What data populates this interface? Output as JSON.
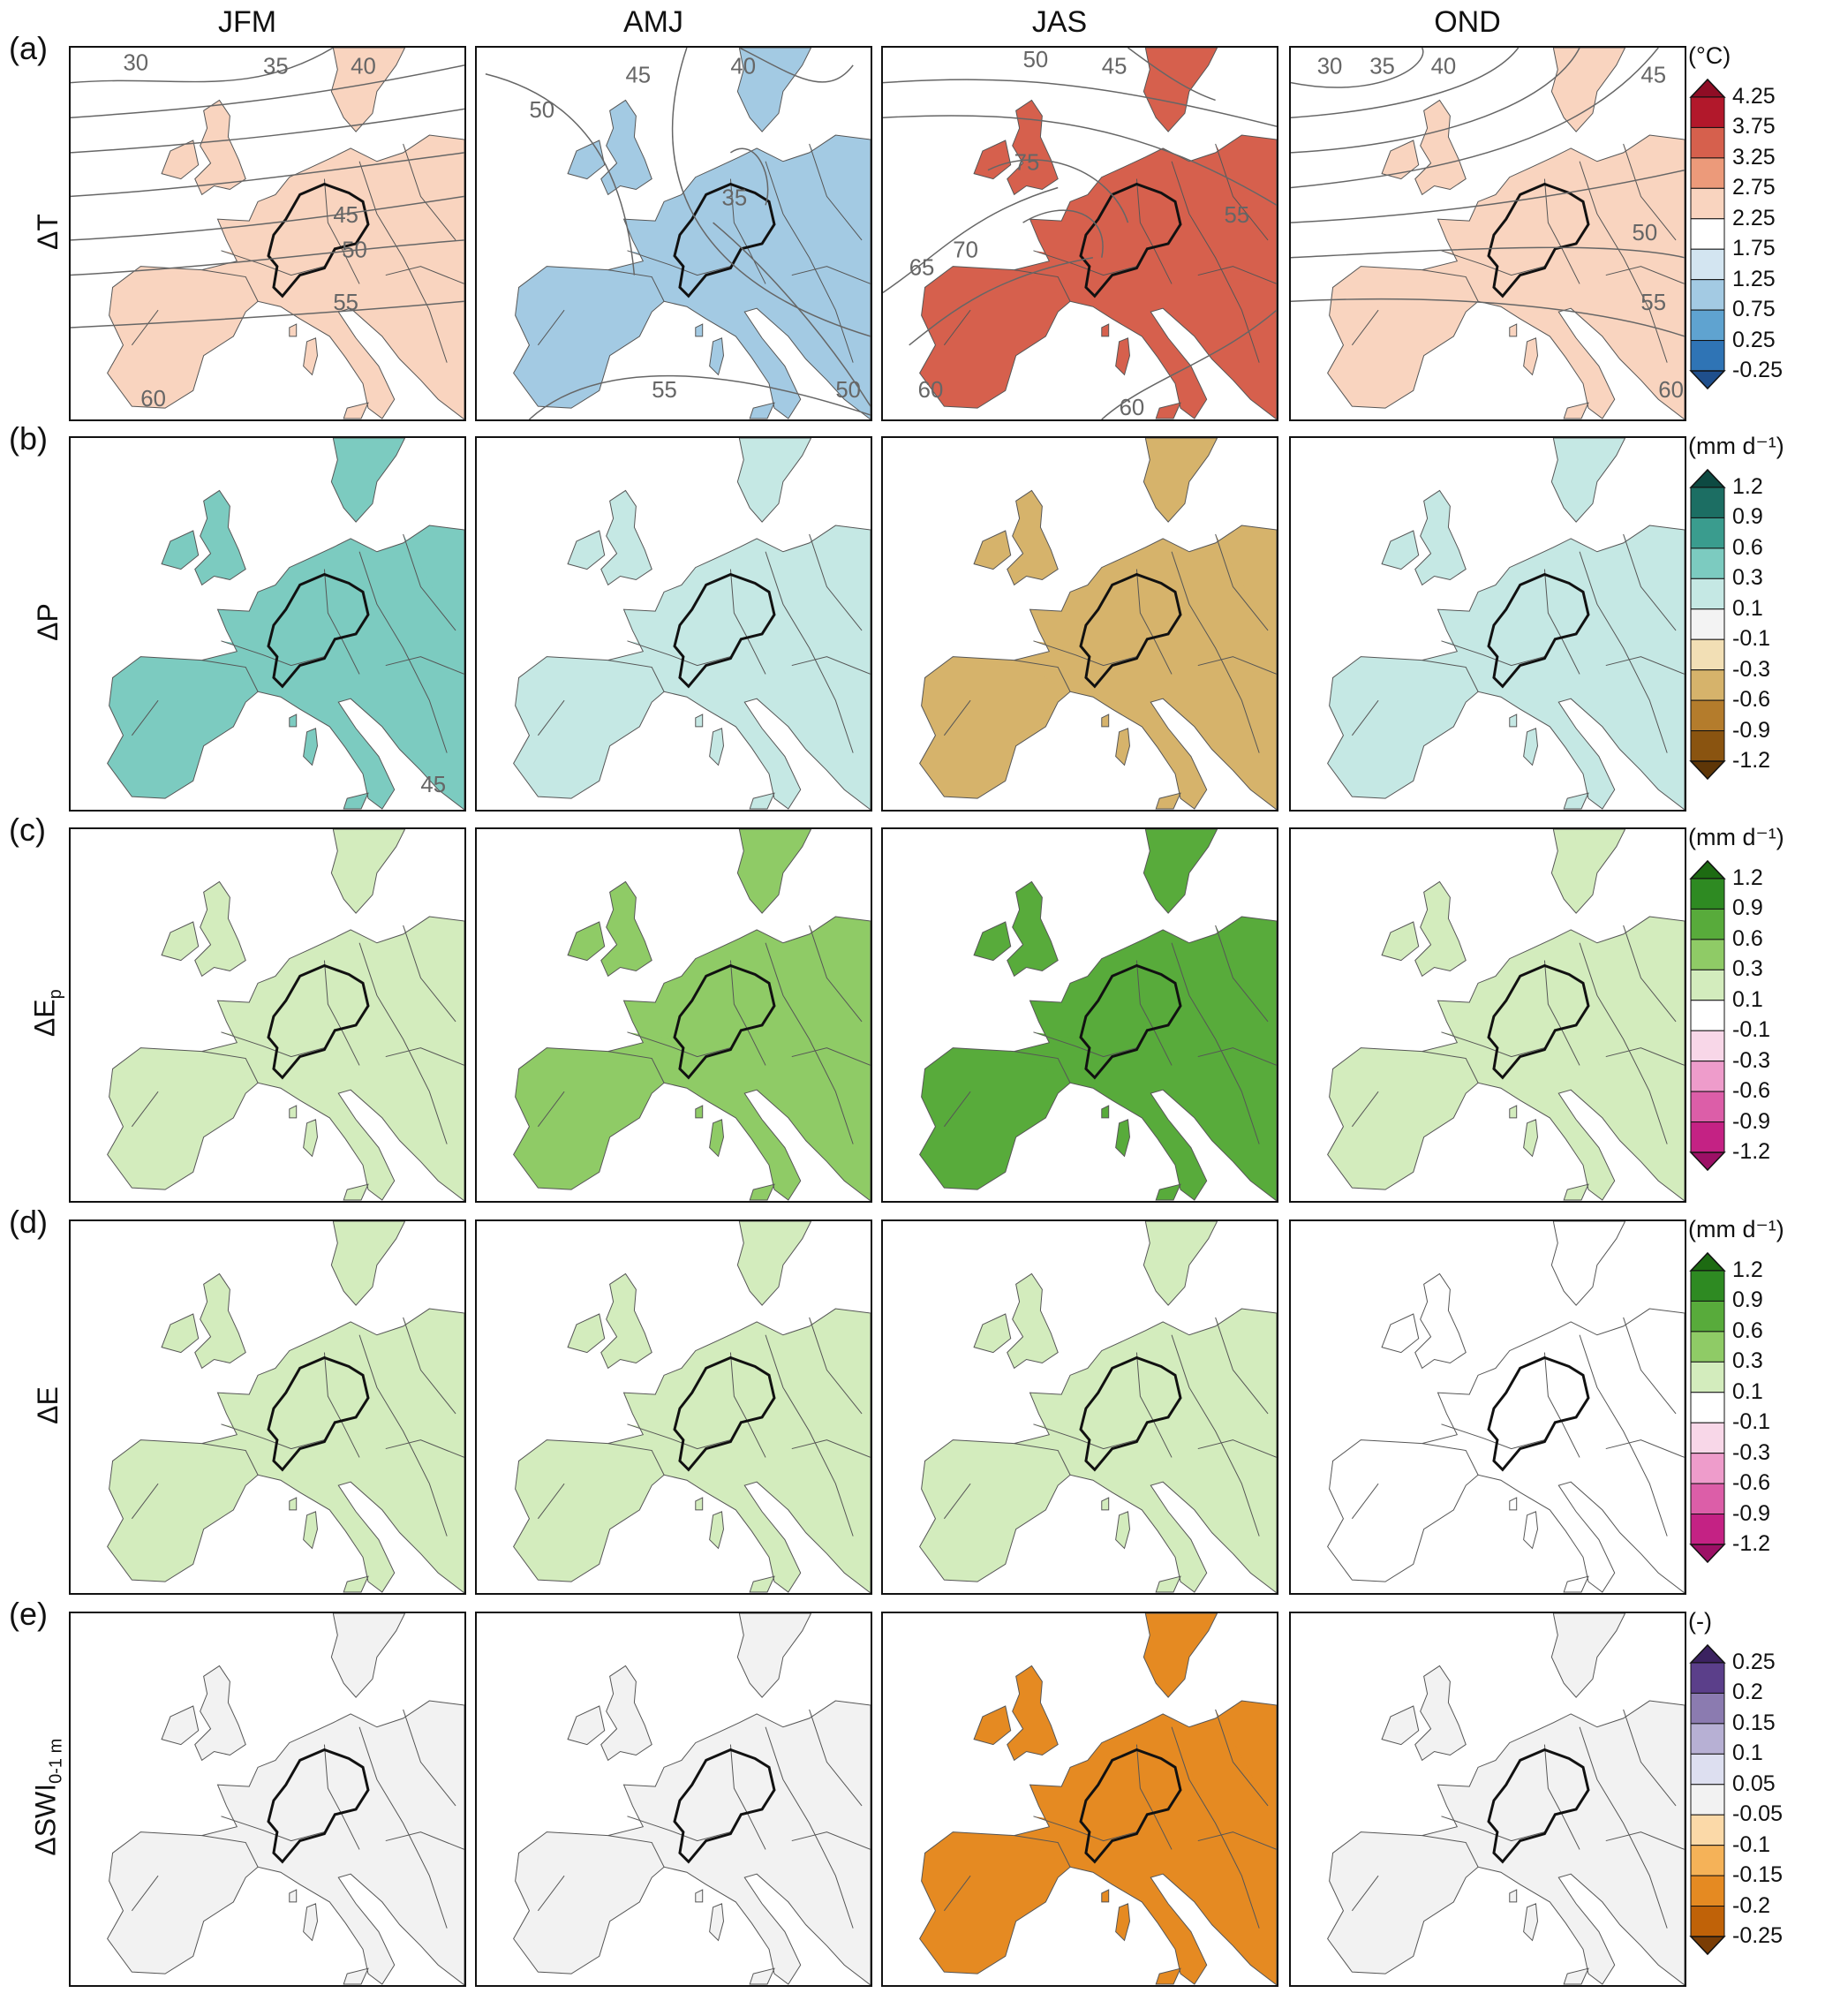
{
  "columns": [
    "JFM",
    "AMJ",
    "JAS",
    "OND"
  ],
  "rows": [
    {
      "id": "a",
      "letter": "(a)",
      "var": "ΔT",
      "var_sub": "",
      "unit": "(°C)",
      "ticks": [
        "4.25",
        "3.75",
        "3.25",
        "2.75",
        "2.25",
        "1.75",
        "1.25",
        "0.75",
        "0.25",
        "-0.25"
      ],
      "colors": [
        "#b2182b",
        "#d6604d",
        "#ec9a7a",
        "#f9d4bf",
        "#ffffff",
        "#d3e5f1",
        "#a3cae3",
        "#5fa3d0",
        "#2f74b5"
      ],
      "end_high": "#8f0d25",
      "end_low": "#1f4f8c",
      "maps": [
        {
          "labels": [
            "30",
            "35",
            "40",
            "45",
            "50",
            "55",
            "60"
          ]
        },
        {
          "labels": [
            "40",
            "45",
            "35",
            "50",
            "55",
            "50"
          ]
        },
        {
          "labels": [
            "50",
            "45",
            "55",
            "70",
            "75",
            "65",
            "60",
            "60"
          ]
        },
        {
          "labels": [
            "30",
            "35",
            "40",
            "45",
            "50",
            "55",
            "60"
          ]
        }
      ]
    },
    {
      "id": "b",
      "letter": "(b)",
      "var": "ΔP",
      "var_sub": "",
      "unit": "(mm d⁻¹)",
      "ticks": [
        "1.2",
        "0.9",
        "0.6",
        "0.3",
        "0.1",
        "-0.1",
        "-0.3",
        "-0.6",
        "-0.9",
        "-1.2"
      ],
      "colors": [
        "#1c6e63",
        "#3a9c8e",
        "#7ccbc0",
        "#c5e8e4",
        "#f3f3f3",
        "#f2dfb5",
        "#d6b36b",
        "#b47c2c",
        "#8a5410"
      ],
      "end_high": "#0d4a42",
      "end_low": "#5e3607",
      "maps": [
        {
          "labels": [
            "45"
          ]
        },
        {
          "labels": []
        },
        {
          "labels": []
        },
        {
          "labels": []
        }
      ]
    },
    {
      "id": "c",
      "letter": "(c)",
      "var": "ΔE",
      "var_sub": "p",
      "unit": "(mm d⁻¹)",
      "ticks": [
        "1.2",
        "0.9",
        "0.6",
        "0.3",
        "0.1",
        "-0.1",
        "-0.3",
        "-0.6",
        "-0.9",
        "-1.2"
      ],
      "colors": [
        "#2e8a22",
        "#58ab3b",
        "#8fcb66",
        "#d3ecbd",
        "#ffffff",
        "#f8d7e8",
        "#ee9ccb",
        "#dc5ea8",
        "#c42284"
      ],
      "end_high": "#1d6b12",
      "end_low": "#9c1066",
      "maps": [
        {
          "labels": []
        },
        {
          "labels": []
        },
        {
          "labels": []
        },
        {
          "labels": []
        }
      ]
    },
    {
      "id": "d",
      "letter": "(d)",
      "var": "ΔE",
      "var_sub": "",
      "unit": "(mm d⁻¹)",
      "ticks": [
        "1.2",
        "0.9",
        "0.6",
        "0.3",
        "0.1",
        "-0.1",
        "-0.3",
        "-0.6",
        "-0.9",
        "-1.2"
      ],
      "colors": [
        "#2e8a22",
        "#58ab3b",
        "#8fcb66",
        "#d3ecbd",
        "#ffffff",
        "#f8d7e8",
        "#ee9ccb",
        "#dc5ea8",
        "#c42284"
      ],
      "end_high": "#1d6b12",
      "end_low": "#9c1066",
      "maps": [
        {
          "labels": []
        },
        {
          "labels": []
        },
        {
          "labels": []
        },
        {
          "labels": []
        }
      ]
    },
    {
      "id": "e",
      "letter": "(e)",
      "var": "ΔSWI",
      "var_sub": "0-1 m",
      "unit": "(-)",
      "ticks": [
        "0.25",
        "0.2",
        "0.15",
        "0.1",
        "0.05",
        "-0.05",
        "-0.1",
        "-0.15",
        "-0.2",
        "-0.25"
      ],
      "colors": [
        "#5b3f8a",
        "#8b7bb0",
        "#b7b0d4",
        "#dddff0",
        "#f2f2f2",
        "#fbd9a8",
        "#f5b258",
        "#e58a22",
        "#c06208"
      ],
      "end_high": "#3b2260",
      "end_low": "#7a3d05",
      "maps": [
        {
          "labels": []
        },
        {
          "labels": []
        },
        {
          "labels": []
        },
        {
          "labels": []
        }
      ]
    }
  ]
}
